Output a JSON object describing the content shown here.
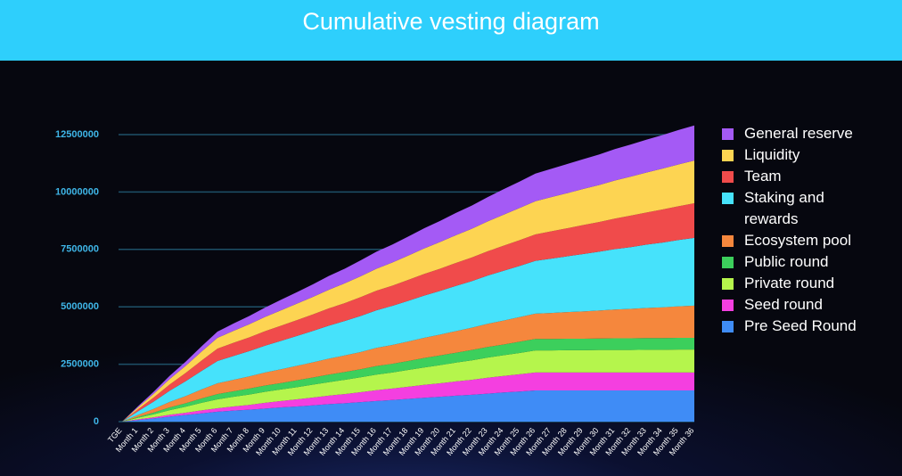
{
  "chart_data": {
    "type": "stacked_area",
    "title": "Cumulative vesting diagram",
    "categories": [
      "TGE",
      "Month 1",
      "Month 2",
      "Month 3",
      "Month 4",
      "Month 5",
      "Month 6",
      "Month 7",
      "Month 8",
      "Month 9",
      "Month 10",
      "Month 11",
      "Month 12",
      "Month 13",
      "Month 14",
      "Month 15",
      "Month 16",
      "Month 17",
      "Month 18",
      "Month 19",
      "Month 20",
      "Month 21",
      "Month 22",
      "Month 23",
      "Month 24",
      "Month 25",
      "Month 26",
      "Month 27",
      "Month 28",
      "Month 29",
      "Month 30",
      "Month 31",
      "Month 32",
      "Month 33",
      "Month 34",
      "Month 35",
      "Month 36"
    ],
    "series": [
      {
        "name": "Pre Seed Round",
        "color": "#3f8cf6",
        "values": [
          0,
          70000,
          140000,
          220000,
          290000,
          360000,
          430000,
          480000,
          520000,
          570000,
          620000,
          660000,
          710000,
          760000,
          800000,
          850000,
          900000,
          940000,
          990000,
          1040000,
          1080000,
          1130000,
          1170000,
          1220000,
          1270000,
          1310000,
          1360000,
          1360000,
          1360000,
          1360000,
          1360000,
          1360000,
          1360000,
          1360000,
          1360000,
          1360000,
          1360000
        ]
      },
      {
        "name": "Seed round",
        "color": "#f43fe0",
        "values": [
          0,
          30000,
          50000,
          80000,
          100000,
          130000,
          150000,
          180000,
          210000,
          250000,
          280000,
          310000,
          340000,
          370000,
          400000,
          430000,
          470000,
          500000,
          530000,
          560000,
          590000,
          620000,
          650000,
          690000,
          720000,
          750000,
          780000,
          780000,
          780000,
          780000,
          780000,
          780000,
          780000,
          780000,
          780000,
          780000,
          780000
        ]
      },
      {
        "name": "Private round",
        "color": "#b5f54c",
        "values": [
          0,
          70000,
          130000,
          200000,
          260000,
          330000,
          390000,
          420000,
          450000,
          480000,
          500000,
          530000,
          560000,
          590000,
          620000,
          650000,
          680000,
          700000,
          730000,
          760000,
          790000,
          820000,
          850000,
          880000,
          900000,
          930000,
          960000,
          960000,
          970000,
          970000,
          980000,
          980000,
          980000,
          990000,
          990000,
          1000000,
          1000000
        ]
      },
      {
        "name": "Public round",
        "color": "#3ccf5c",
        "values": [
          0,
          40000,
          80000,
          120000,
          150000,
          190000,
          230000,
          240000,
          260000,
          270000,
          280000,
          300000,
          310000,
          330000,
          340000,
          350000,
          370000,
          380000,
          390000,
          410000,
          420000,
          430000,
          450000,
          460000,
          470000,
          490000,
          500000,
          500000,
          500000,
          500000,
          500000,
          510000,
          510000,
          510000,
          510000,
          510000,
          510000
        ]
      },
      {
        "name": "Ecosystem pool",
        "color": "#f5873d",
        "values": [
          0,
          80000,
          160000,
          240000,
          310000,
          390000,
          470000,
          500000,
          530000,
          570000,
          600000,
          630000,
          660000,
          690000,
          720000,
          750000,
          790000,
          820000,
          850000,
          880000,
          910000,
          940000,
          970000,
          1010000,
          1040000,
          1070000,
          1100000,
          1130000,
          1160000,
          1190000,
          1220000,
          1250000,
          1280000,
          1310000,
          1340000,
          1370000,
          1400000
        ]
      },
      {
        "name": "Staking and rewards",
        "color": "#46e2fb",
        "values": [
          0,
          160000,
          320000,
          490000,
          650000,
          810000,
          970000,
          1040000,
          1100000,
          1170000,
          1240000,
          1300000,
          1370000,
          1440000,
          1500000,
          1570000,
          1640000,
          1700000,
          1770000,
          1840000,
          1900000,
          1970000,
          2030000,
          2100000,
          2170000,
          2230000,
          2300000,
          2370000,
          2430000,
          2500000,
          2560000,
          2630000,
          2690000,
          2760000,
          2820000,
          2890000,
          2950000
        ]
      },
      {
        "name": "Team",
        "color": "#f04b4b",
        "values": [
          0,
          90000,
          180000,
          270000,
          360000,
          450000,
          540000,
          570000,
          600000,
          630000,
          660000,
          690000,
          720000,
          750000,
          780000,
          820000,
          850000,
          880000,
          910000,
          940000,
          970000,
          1000000,
          1030000,
          1060000,
          1090000,
          1120000,
          1150000,
          1190000,
          1220000,
          1260000,
          1290000,
          1330000,
          1370000,
          1400000,
          1440000,
          1470000,
          1510000
        ]
      },
      {
        "name": "Liquidity",
        "color": "#fdd452",
        "values": [
          0,
          80000,
          160000,
          240000,
          310000,
          390000,
          470000,
          520000,
          570000,
          620000,
          670000,
          720000,
          760000,
          810000,
          860000,
          910000,
          960000,
          1010000,
          1060000,
          1110000,
          1160000,
          1210000,
          1250000,
          1300000,
          1350000,
          1400000,
          1450000,
          1490000,
          1530000,
          1570000,
          1610000,
          1660000,
          1700000,
          1740000,
          1780000,
          1820000,
          1860000
        ]
      },
      {
        "name": "General reserve",
        "color": "#a45af5",
        "values": [
          0,
          50000,
          90000,
          140000,
          180000,
          230000,
          270000,
          320000,
          360000,
          410000,
          460000,
          500000,
          550000,
          600000,
          640000,
          690000,
          740000,
          780000,
          830000,
          880000,
          920000,
          970000,
          1010000,
          1060000,
          1110000,
          1150000,
          1200000,
          1230000,
          1270000,
          1300000,
          1330000,
          1370000,
          1400000,
          1430000,
          1460000,
          1500000,
          1530000
        ]
      }
    ],
    "ylim": [
      0,
      13000000
    ],
    "yticks": [
      0,
      2500000,
      5000000,
      7500000,
      10000000,
      12500000
    ],
    "grid": true
  }
}
